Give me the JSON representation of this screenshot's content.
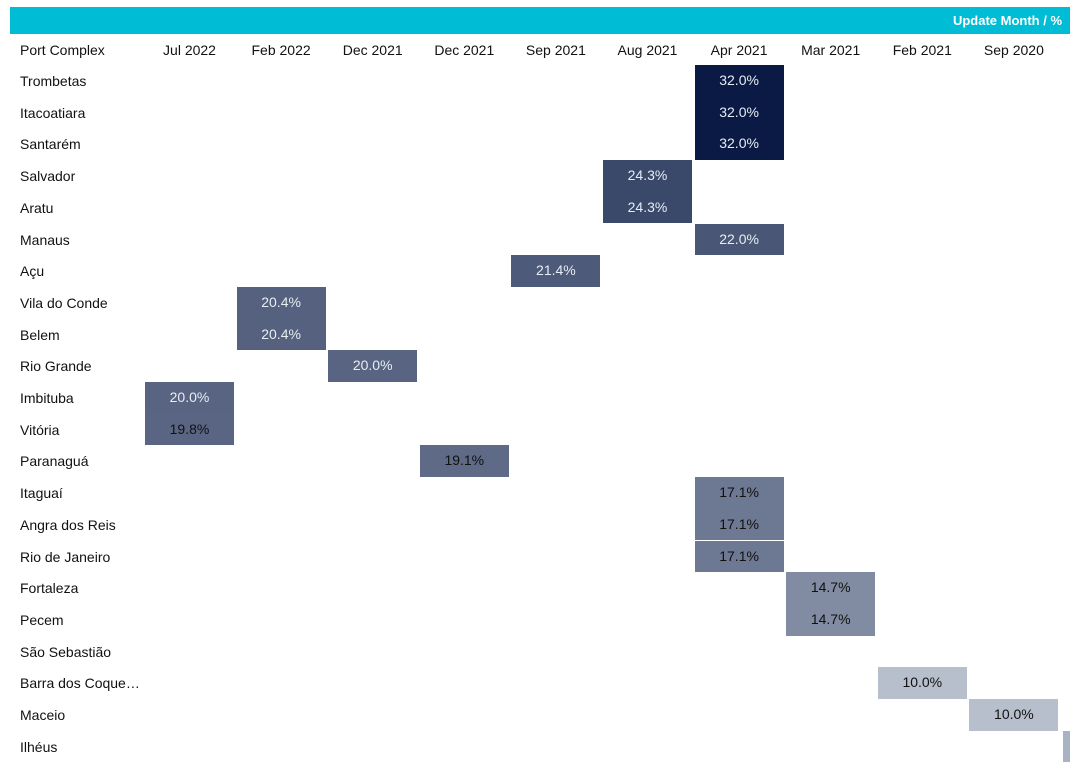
{
  "header": {
    "title": "Update Month / %"
  },
  "row_header": "Port Complex",
  "chart_data": {
    "type": "heatmap",
    "columns": [
      "Jul 2022",
      "Feb 2022",
      "Dec 2021",
      "Dec 2021",
      "Sep 2021",
      "Aug 2021",
      "Apr 2021",
      "Mar 2021",
      "Feb 2021",
      "Sep 2020"
    ],
    "rows": [
      {
        "name": "Trombetas",
        "col": 6,
        "value": 32.0,
        "label": "32.0%"
      },
      {
        "name": "Itacoatiara",
        "col": 6,
        "value": 32.0,
        "label": "32.0%"
      },
      {
        "name": "Santarém",
        "col": 6,
        "value": 32.0,
        "label": "32.0%"
      },
      {
        "name": "Salvador",
        "col": 5,
        "value": 24.3,
        "label": "24.3%"
      },
      {
        "name": "Aratu",
        "col": 5,
        "value": 24.3,
        "label": "24.3%"
      },
      {
        "name": "Manaus",
        "col": 6,
        "value": 22.0,
        "label": "22.0%"
      },
      {
        "name": "Açu",
        "col": 4,
        "value": 21.4,
        "label": "21.4%"
      },
      {
        "name": "Vila do Conde",
        "col": 1,
        "value": 20.4,
        "label": "20.4%"
      },
      {
        "name": "Belem",
        "col": 1,
        "value": 20.4,
        "label": "20.4%"
      },
      {
        "name": "Rio Grande",
        "col": 2,
        "value": 20.0,
        "label": "20.0%"
      },
      {
        "name": "Imbituba",
        "col": 0,
        "value": 20.0,
        "label": "20.0%"
      },
      {
        "name": "Vitória",
        "col": 0,
        "value": 19.8,
        "label": "19.8%"
      },
      {
        "name": "Paranaguá",
        "col": 3,
        "value": 19.1,
        "label": "19.1%"
      },
      {
        "name": "Itaguaí",
        "col": 6,
        "value": 17.1,
        "label": "17.1%"
      },
      {
        "name": "Angra dos Reis",
        "col": 6,
        "value": 17.1,
        "label": "17.1%"
      },
      {
        "name": "Rio de Janeiro",
        "col": 6,
        "value": 17.1,
        "label": "17.1%"
      },
      {
        "name": "Fortaleza",
        "col": 7,
        "value": 14.7,
        "label": "14.7%"
      },
      {
        "name": "Pecem",
        "col": 7,
        "value": 14.7,
        "label": "14.7%"
      },
      {
        "name": "São Sebastião",
        "col": null,
        "value": null,
        "label": ""
      },
      {
        "name": "Barra dos Coque…",
        "col": 8,
        "value": 10.0,
        "label": "10.0%"
      },
      {
        "name": "Maceio",
        "col": 9,
        "value": 10.0,
        "label": "10.0%"
      },
      {
        "name": "Ilhéus",
        "col": 9,
        "value": null,
        "label": ""
      }
    ],
    "color_scale": {
      "low": "#b7bfcc",
      "high": "#0b1a44"
    }
  }
}
